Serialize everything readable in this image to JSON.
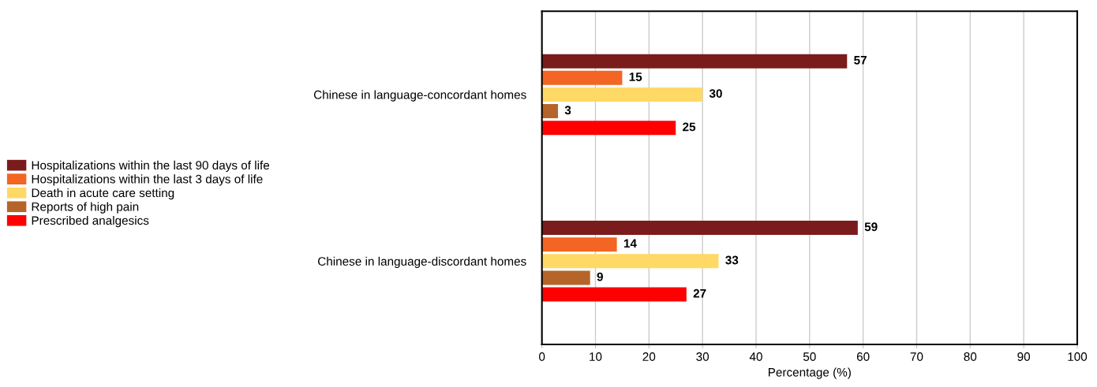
{
  "chart_data": {
    "type": "bar",
    "orientation": "horizontal",
    "xlabel": "Percentage (%)",
    "categories": [
      "Chinese in language-concordant homes",
      "Chinese in language-discordant homes"
    ],
    "series": [
      {
        "name": "Hospitalizations within the last 90 days of life",
        "color": "#7b1c1c",
        "values": [
          57,
          59
        ]
      },
      {
        "name": "Hospitalizations within the last 3 days of life",
        "color": "#f26522",
        "values": [
          15,
          14
        ]
      },
      {
        "name": "Death in acute care setting",
        "color": "#ffd966",
        "values": [
          30,
          33
        ]
      },
      {
        "name": "Reports of high pain",
        "color": "#b5652a",
        "values": [
          3,
          9
        ]
      },
      {
        "name": "Prescribed analgesics",
        "color": "#ff0000",
        "values": [
          25,
          27
        ]
      }
    ],
    "xlim": [
      0,
      100
    ],
    "xticks": [
      0,
      10,
      20,
      30,
      40,
      50,
      60,
      70,
      80,
      90,
      100
    ],
    "grid": "x",
    "legend": "left",
    "data_labels": true
  }
}
